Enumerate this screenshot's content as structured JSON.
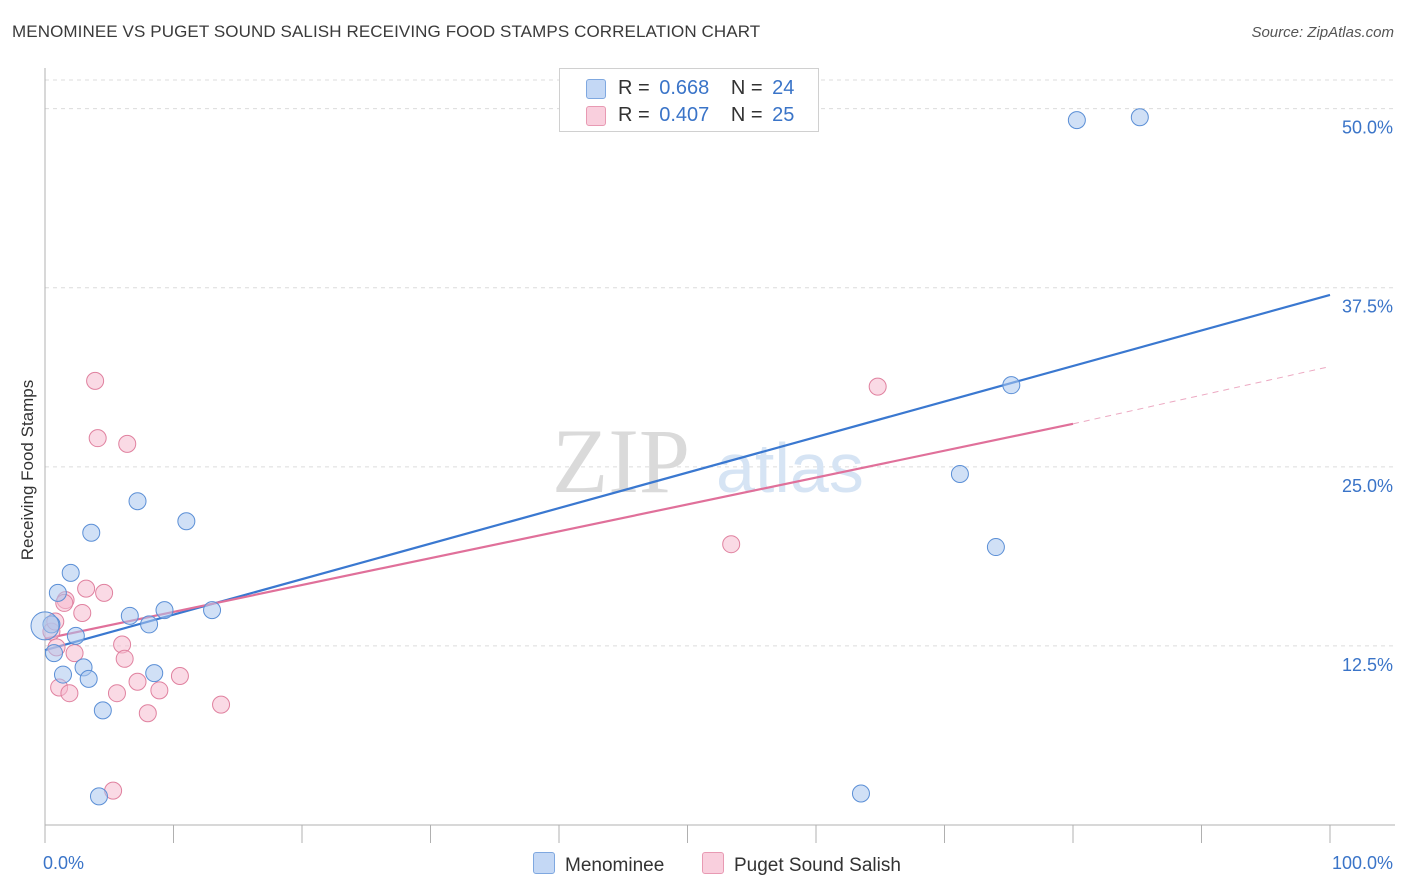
{
  "title": "MENOMINEE VS PUGET SOUND SALISH RECEIVING FOOD STAMPS CORRELATION CHART",
  "source": "Source: ZipAtlas.com",
  "watermark": {
    "zip": "ZIP",
    "atlas": "atlas"
  },
  "legend": {
    "rows": [
      {
        "r_label": "R =",
        "r_value": "0.668",
        "n_label": "N =",
        "n_value": "24"
      },
      {
        "r_label": "R =",
        "r_value": "0.407",
        "n_label": "N =",
        "n_value": "25"
      }
    ]
  },
  "chart_data": {
    "type": "scatter",
    "title": "MENOMINEE VS PUGET SOUND SALISH RECEIVING FOOD STAMPS CORRELATION CHART",
    "xlabel": "",
    "ylabel": "Receiving Food Stamps",
    "xlim": [
      0,
      100
    ],
    "ylim": [
      0,
      52
    ],
    "x_tick_labels": [
      "0.0%",
      "100.0%"
    ],
    "y_ticks": [
      12.5,
      25.0,
      37.5,
      50.0
    ],
    "y_tick_labels": [
      "12.5%",
      "25.0%",
      "37.5%",
      "50.0%"
    ],
    "grid": "horizontal dashed",
    "legend_position": "top-center",
    "series": [
      {
        "name": "Menominee",
        "color": "#a9c6ee",
        "edge": "#5b8fd6",
        "line_color": "#3a78d0",
        "r": "0.668",
        "n": "24",
        "points": [
          [
            0.5,
            14.0
          ],
          [
            0.7,
            12.0
          ],
          [
            1.0,
            16.2
          ],
          [
            1.4,
            10.5
          ],
          [
            2.0,
            17.6
          ],
          [
            2.4,
            13.2
          ],
          [
            3.0,
            11.0
          ],
          [
            3.4,
            10.2
          ],
          [
            3.6,
            20.4
          ],
          [
            4.2,
            2.0
          ],
          [
            4.5,
            8.0
          ],
          [
            6.6,
            14.6
          ],
          [
            7.2,
            22.6
          ],
          [
            8.1,
            14.0
          ],
          [
            8.5,
            10.6
          ],
          [
            9.3,
            15.0
          ],
          [
            11.0,
            21.2
          ],
          [
            13.0,
            15.0
          ],
          [
            63.5,
            2.2
          ],
          [
            71.2,
            24.5
          ],
          [
            74.0,
            19.4
          ],
          [
            75.2,
            30.7
          ],
          [
            80.3,
            49.2
          ],
          [
            85.2,
            49.4
          ]
        ],
        "trend": {
          "x0": 0,
          "y0": 12.2,
          "x1": 100,
          "y1": 37.0
        }
      },
      {
        "name": "Puget Sound Salish",
        "color": "#f6bcd0",
        "edge": "#e0819f",
        "line_color": "#e0709a",
        "r": "0.407",
        "n": "25",
        "points": [
          [
            0.5,
            13.5
          ],
          [
            0.8,
            14.2
          ],
          [
            1.1,
            9.6
          ],
          [
            1.6,
            15.7
          ],
          [
            1.9,
            9.2
          ],
          [
            2.3,
            12.0
          ],
          [
            2.9,
            14.8
          ],
          [
            3.2,
            16.5
          ],
          [
            3.9,
            31.0
          ],
          [
            4.1,
            27.0
          ],
          [
            4.6,
            16.2
          ],
          [
            5.3,
            2.4
          ],
          [
            5.6,
            9.2
          ],
          [
            6.0,
            12.6
          ],
          [
            6.2,
            11.6
          ],
          [
            6.4,
            26.6
          ],
          [
            7.2,
            10.0
          ],
          [
            8.0,
            7.8
          ],
          [
            8.9,
            9.4
          ],
          [
            10.5,
            10.4
          ],
          [
            13.7,
            8.4
          ],
          [
            1.5,
            15.5
          ],
          [
            53.4,
            19.6
          ],
          [
            64.8,
            30.6
          ],
          [
            0.9,
            12.4
          ]
        ],
        "trend": {
          "x0": 0,
          "y0": 13.0,
          "x1": 80,
          "y1": 28.0
        },
        "trend_dashed": {
          "x0": 80,
          "y0": 28.0,
          "x1": 100,
          "y1": 32.0
        }
      }
    ]
  },
  "colors": {
    "axis": "#b0b0b0",
    "grid": "#dcdcdc",
    "tick_label": "#3a74c8",
    "watermark": "#d9d9d9"
  }
}
